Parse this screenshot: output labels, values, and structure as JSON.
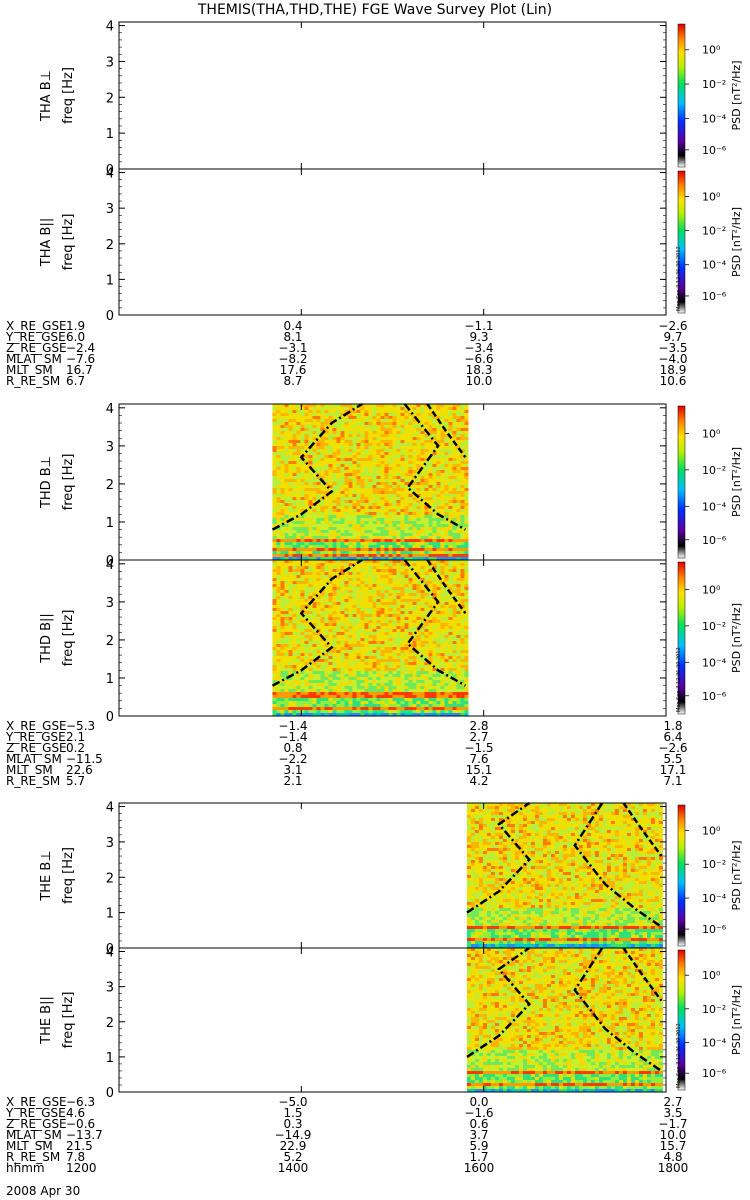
{
  "title": "THEMIS(THA,THD,THE) FGE Wave Survey Plot (Lin)",
  "colorbar": {
    "label": "PSD [nT²/Hz]",
    "ticks": [
      "10⁰",
      "10⁻²",
      "10⁻⁴",
      "10⁻⁶"
    ],
    "stamp": "Mon Sep 3 12:36:30 2012"
  },
  "chart_data": [
    {
      "type": "heatmap",
      "probe": "THA",
      "component": "B⊥",
      "ylabel": "THA B⊥",
      "ylabel2": "freq [Hz]",
      "ylim": [
        0,
        4.1
      ],
      "yticks": [
        "0",
        "1",
        "2",
        "3",
        "4"
      ],
      "data_range_hhmm": null,
      "curves": []
    },
    {
      "type": "heatmap",
      "probe": "THA",
      "component": "B∥",
      "ylabel": "THA B||",
      "ylabel2": "freq [Hz]",
      "ylim": [
        0,
        4.1
      ],
      "yticks": [
        "0",
        "1",
        "2",
        "3",
        "4"
      ],
      "data_range_hhmm": null,
      "curves": []
    },
    {
      "type": "heatmap",
      "probe": "THD",
      "component": "B⊥",
      "ylabel": "THD B⊥",
      "ylabel2": "freq [Hz]",
      "ylim": [
        0,
        4.1
      ],
      "yticks": [
        "0",
        "1",
        "2",
        "3",
        "4"
      ],
      "data_range_hhmm": [
        1341,
        1548
      ],
      "bands_hz": [
        0.15,
        0.3,
        0.55
      ],
      "curves": [
        {
          "style": "dash-dot",
          "x": [
            1341,
            1360,
            1380,
            1400,
            1420,
            1440,
            1461
          ],
          "y": [
            0.8,
            1.2,
            1.8,
            2.7,
            3.6,
            4.1,
            null
          ]
        },
        {
          "style": "dash-dot",
          "x": [
            1468,
            1490,
            1510,
            1530,
            1548
          ],
          "y": [
            4.1,
            3.0,
            1.9,
            1.2,
            0.8
          ]
        },
        {
          "style": "dash",
          "x": [
            1523,
            1535,
            1548
          ],
          "y": [
            4.1,
            3.4,
            2.7
          ]
        }
      ]
    },
    {
      "type": "heatmap",
      "probe": "THD",
      "component": "B∥",
      "ylabel": "THD B||",
      "ylabel2": "freq [Hz]",
      "ylim": [
        0,
        4.1
      ],
      "yticks": [
        "0",
        "1",
        "2",
        "3",
        "4"
      ],
      "data_range_hhmm": [
        1341,
        1548
      ],
      "bands_hz": [
        0.25,
        0.6
      ],
      "curves": [
        {
          "style": "dash-dot",
          "x": [
            1341,
            1360,
            1380,
            1400,
            1420,
            1440,
            1461
          ],
          "y": [
            0.8,
            1.2,
            1.8,
            2.7,
            3.6,
            4.1,
            null
          ]
        },
        {
          "style": "dash-dot",
          "x": [
            1468,
            1490,
            1510,
            1530,
            1548
          ],
          "y": [
            4.1,
            3.0,
            1.9,
            1.2,
            0.8
          ]
        },
        {
          "style": "dash",
          "x": [
            1523,
            1535,
            1548
          ],
          "y": [
            4.1,
            3.4,
            2.7
          ]
        }
      ]
    },
    {
      "type": "heatmap",
      "probe": "THE",
      "component": "B⊥",
      "ylabel": "THE B⊥",
      "ylabel2": "freq [Hz]",
      "ylim": [
        0,
        4.1
      ],
      "yticks": [
        "0",
        "1",
        "2",
        "3",
        "4"
      ],
      "data_range_hhmm": [
        1549,
        1757
      ],
      "bands_hz": [
        0.3,
        0.6
      ],
      "curves": [
        {
          "style": "dash-dot",
          "x": [
            1549,
            1570,
            1590,
            1610,
            1630
          ],
          "y": [
            1.0,
            1.6,
            2.5,
            3.5,
            4.1
          ]
        },
        {
          "style": "dash-dot",
          "x": [
            1678,
            1700,
            1720,
            1740,
            1757
          ],
          "y": [
            4.1,
            2.9,
            1.8,
            1.1,
            0.6
          ]
        },
        {
          "style": "dash",
          "x": [
            1732,
            1745,
            1757
          ],
          "y": [
            4.1,
            3.3,
            2.6
          ]
        }
      ]
    },
    {
      "type": "heatmap",
      "probe": "THE",
      "component": "B∥",
      "ylabel": "THE B||",
      "ylabel2": "freq [Hz]",
      "ylim": [
        0,
        4.1
      ],
      "yticks": [
        "0",
        "1",
        "2",
        "3",
        "4"
      ],
      "data_range_hhmm": [
        1549,
        1757
      ],
      "bands_hz": [
        0.25,
        0.6
      ],
      "curves": [
        {
          "style": "dash-dot",
          "x": [
            1549,
            1570,
            1590,
            1610,
            1630
          ],
          "y": [
            1.0,
            1.6,
            2.5,
            3.5,
            4.1
          ]
        },
        {
          "style": "dash-dot",
          "x": [
            1678,
            1700,
            1720,
            1740,
            1757
          ],
          "y": [
            4.1,
            2.9,
            1.8,
            1.1,
            0.6
          ]
        },
        {
          "style": "dash",
          "x": [
            1732,
            1745,
            1757
          ],
          "y": [
            4.1,
            3.3,
            2.6
          ]
        }
      ]
    }
  ],
  "ephemeris": [
    {
      "rows": [
        {
          "label": "X_RE_GSE",
          "values": [
            "1.9",
            "0.4",
            "−1.1",
            "−2.6"
          ]
        },
        {
          "label": "Y_RE_GSE",
          "values": [
            "6.0",
            "8.1",
            "9.3",
            "9.7"
          ]
        },
        {
          "label": "Z_RE_GSE",
          "values": [
            "−2.4",
            "−3.1",
            "−3.4",
            "−3.5"
          ]
        },
        {
          "label": "MLAT_SM",
          "values": [
            "−7.6",
            "−8.2",
            "−6.6",
            "−4.0"
          ]
        },
        {
          "label": "MLT_SM",
          "values": [
            "16.7",
            "17.6",
            "18.3",
            "18.9"
          ]
        },
        {
          "label": "R_RE_SM",
          "values": [
            "6.7",
            "8.7",
            "10.0",
            "10.6"
          ]
        }
      ]
    },
    {
      "rows": [
        {
          "label": "X_RE_GSE",
          "values": [
            "−5.3",
            "−1.4",
            "2.8",
            "1.8"
          ]
        },
        {
          "label": "Y_RE_GSE",
          "values": [
            "2.1",
            "−1.4",
            "2.7",
            "6.4"
          ]
        },
        {
          "label": "Z_RE_GSE",
          "values": [
            "0.2",
            "0.8",
            "−1.5",
            "−2.6"
          ]
        },
        {
          "label": "MLAT_SM",
          "values": [
            "−11.5",
            "−2.2",
            "7.6",
            "5.5"
          ]
        },
        {
          "label": "MLT_SM",
          "values": [
            "22.6",
            "3.1",
            "15.1",
            "17.1"
          ]
        },
        {
          "label": "R_RE_SM",
          "values": [
            "5.7",
            "2.1",
            "4.2",
            "7.1"
          ]
        }
      ]
    },
    {
      "rows": [
        {
          "label": "X_RE_GSE",
          "values": [
            "−6.3",
            "−5.0",
            "0.0",
            "2.7"
          ]
        },
        {
          "label": "Y_RE_GSE",
          "values": [
            "4.6",
            "1.5",
            "−1.6",
            "3.5"
          ]
        },
        {
          "label": "Z_RE_GSE",
          "values": [
            "−0.6",
            "0.3",
            "0.6",
            "−1.7"
          ]
        },
        {
          "label": "MLAT_SM",
          "values": [
            "−13.7",
            "−14.9",
            "3.7",
            "10.0"
          ]
        },
        {
          "label": "MLT_SM",
          "values": [
            "21.5",
            "22.9",
            "5.9",
            "15.7"
          ]
        },
        {
          "label": "R_RE_SM",
          "values": [
            "7.8",
            "5.2",
            "1.7",
            "4.8"
          ]
        },
        {
          "label": "hhmm",
          "values": [
            "1200",
            "1400",
            "1600",
            "1800"
          ]
        }
      ]
    }
  ],
  "date": "2008 Apr 30",
  "time_axis_hhmm": [
    1200,
    1800
  ]
}
